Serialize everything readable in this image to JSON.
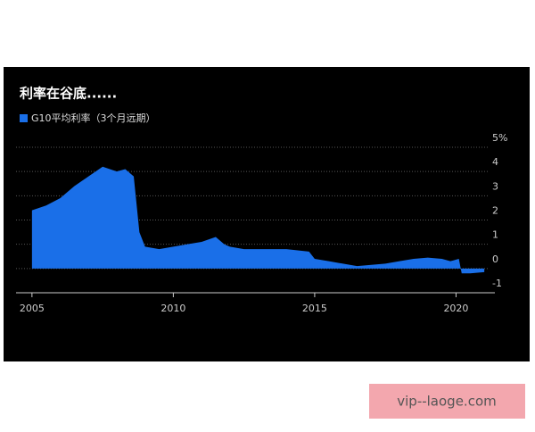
{
  "chart_data": {
    "type": "area",
    "title": "利率在谷底......",
    "x": [
      2005.0,
      2005.5,
      2006.0,
      2006.5,
      2007.0,
      2007.5,
      2008.0,
      2008.3,
      2008.6,
      2008.8,
      2009.0,
      2009.5,
      2010.0,
      2010.5,
      2011.0,
      2011.5,
      2011.8,
      2012.0,
      2012.5,
      2013.0,
      2014.0,
      2014.8,
      2015.0,
      2015.5,
      2016.0,
      2016.5,
      2017.0,
      2017.5,
      2018.0,
      2018.5,
      2019.0,
      2019.5,
      2019.8,
      2020.1,
      2020.2,
      2020.5,
      2021.0
    ],
    "series": [
      {
        "name": "G10平均利率（3个月远期）",
        "color": "#1a6fe8",
        "values": [
          2.4,
          2.6,
          2.9,
          3.4,
          3.8,
          4.2,
          4.0,
          4.1,
          3.8,
          1.5,
          0.9,
          0.8,
          0.9,
          1.0,
          1.1,
          1.3,
          1.0,
          0.9,
          0.8,
          0.8,
          0.8,
          0.7,
          0.4,
          0.3,
          0.2,
          0.1,
          0.15,
          0.2,
          0.3,
          0.4,
          0.45,
          0.4,
          0.3,
          0.4,
          -0.2,
          -0.2,
          -0.15
        ]
      }
    ],
    "xlim": [
      2004.5,
      2021.5
    ],
    "xticks": [
      2005,
      2010,
      2015,
      2020
    ],
    "ylim": [
      -1,
      5
    ],
    "yticks": [
      {
        "value": 5,
        "label": "5%"
      },
      4,
      3,
      2,
      1,
      0,
      -1
    ],
    "grid": true
  },
  "watermark": {
    "text": "vip--laoge.com"
  }
}
